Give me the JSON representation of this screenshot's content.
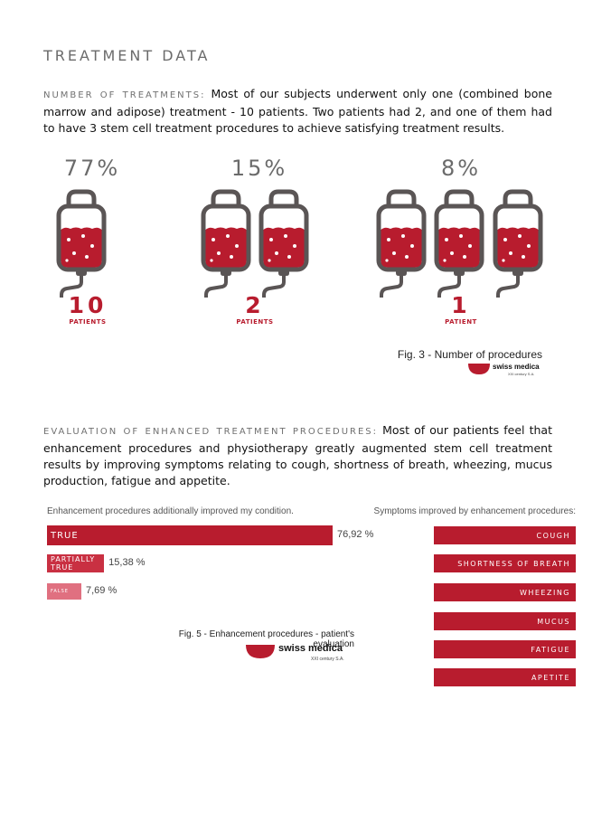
{
  "section_title": "TREATMENT DATA",
  "treatments": {
    "kicker": "NUMBER OF TREATMENTS:",
    "text": " Most of our subjects underwent only one (combined bone marrow and adipose) treatment - 10 patients. Two patients had 2, and one of them had to have 3 stem cell treatment procedures to achieve satisfying treatment results.",
    "groups": [
      {
        "percent": "77%",
        "count": "10",
        "label": "PATIENTS",
        "bags": 1
      },
      {
        "percent": "15%",
        "count": "2",
        "label": "PATIENTS",
        "bags": 2
      },
      {
        "percent": "8%",
        "count": "1",
        "label": "PATIENT",
        "bags": 3
      }
    ],
    "figure_caption": "Fig. 3 - Number of procedures"
  },
  "evaluation": {
    "kicker": "EVALUATION OF ENHANCED TREATMENT PROCEDURES:",
    "text": " Most of our patients feel that enhancement procedures and physiotherapy greatly augmented stem cell treatment results by improving symptoms relating to cough, shortness of breath, wheezing, mucus production, fatigue and appetite.",
    "chart_heading": "Enhancement procedures additionally improved my condition.",
    "symptoms_heading": "Symptoms improved by enhancement procedures:",
    "symptoms": [
      "COUGH",
      "SHORTNESS OF BREATH",
      "WHEEZING",
      "MUCUS",
      "FATIGUE",
      "APETITE"
    ],
    "figure_caption": "Fig. 5 - Enhancement procedures - patient's evaluation"
  },
  "chart_data": {
    "type": "bar",
    "orientation": "horizontal",
    "categories": [
      "TRUE",
      "PARTIALLY TRUE",
      "FALSE"
    ],
    "values": [
      76.92,
      15.38,
      7.69
    ],
    "value_labels": [
      "76,92 %",
      "15,38 %",
      "7,69 %"
    ],
    "unit": "%",
    "title": "Enhancement procedures additionally improved my condition.",
    "colors": [
      "#b81c2e",
      "#c93042",
      "#e07080"
    ]
  },
  "logo": {
    "name": "swiss medica",
    "sub": "XXI century S.A."
  },
  "colors": {
    "accent": "#b81c2e",
    "gray": "#6b6b6b"
  }
}
